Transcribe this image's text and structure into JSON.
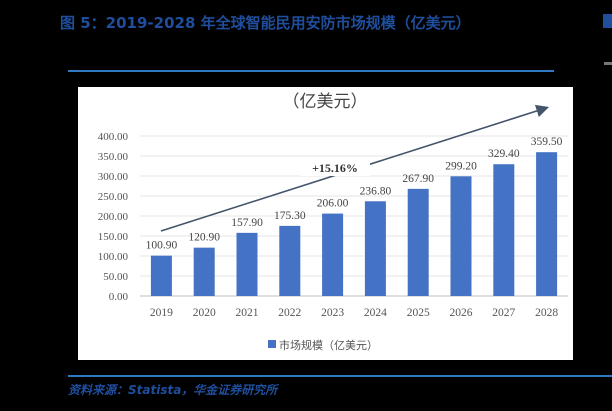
{
  "figure": {
    "title": "图 5：2019-2028 年全球智能民用安防市场规模（亿美元）",
    "source": "资料来源：Statista，华金证券研究所"
  },
  "chart_data": {
    "type": "bar",
    "title": "（亿美元）",
    "categories": [
      "2019",
      "2020",
      "2021",
      "2022",
      "2023",
      "2024",
      "2025",
      "2026",
      "2027",
      "2028"
    ],
    "series": [
      {
        "name": "市场规模（亿美元）",
        "values": [
          100.9,
          120.9,
          157.9,
          175.3,
          206.0,
          236.8,
          267.9,
          299.2,
          329.4,
          359.5
        ]
      }
    ],
    "data_labels": [
      "100.90",
      "120.90",
      "157.90",
      "175.30",
      "206.00",
      "236.80",
      "267.90",
      "299.20",
      "329.40",
      "359.50"
    ],
    "yticks": [
      "0.00",
      "50.00",
      "100.00",
      "150.00",
      "200.00",
      "250.00",
      "300.00",
      "350.00",
      "400.00"
    ],
    "ylim": [
      0,
      400
    ],
    "xlabel": "",
    "ylabel": "",
    "grid": true,
    "legend_position": "bottom",
    "annotation": "+15.16%",
    "bar_color": "#4472c4"
  }
}
